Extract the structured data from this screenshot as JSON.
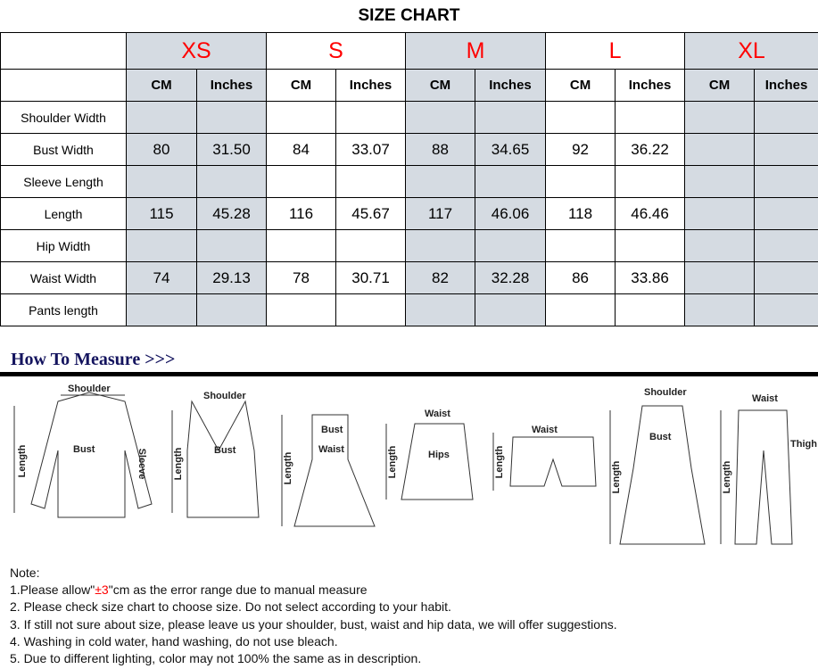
{
  "title": "SIZE CHART",
  "sizes": [
    "XS",
    "S",
    "M",
    "L",
    "XL"
  ],
  "units": [
    "CM",
    "Inches"
  ],
  "rows": [
    {
      "label": "Shoulder Width",
      "values": [
        "",
        "",
        "",
        "",
        "",
        "",
        "",
        "",
        "",
        ""
      ]
    },
    {
      "label": "Bust Width",
      "values": [
        "80",
        "31.50",
        "84",
        "33.07",
        "88",
        "34.65",
        "92",
        "36.22",
        "",
        ""
      ]
    },
    {
      "label": "Sleeve Length",
      "values": [
        "",
        "",
        "",
        "",
        "",
        "",
        "",
        "",
        "",
        ""
      ]
    },
    {
      "label": "Length",
      "values": [
        "115",
        "45.28",
        "116",
        "45.67",
        "117",
        "46.06",
        "118",
        "46.46",
        "",
        ""
      ]
    },
    {
      "label": "Hip Width",
      "values": [
        "",
        "",
        "",
        "",
        "",
        "",
        "",
        "",
        "",
        ""
      ]
    },
    {
      "label": "Waist Width",
      "values": [
        "74",
        "29.13",
        "78",
        "30.71",
        "82",
        "32.28",
        "86",
        "33.86",
        "",
        ""
      ]
    },
    {
      "label": "Pants length",
      "values": [
        "",
        "",
        "",
        "",
        "",
        "",
        "",
        "",
        "",
        ""
      ]
    }
  ],
  "how_to_measure": "How To Measure >>>",
  "diagram_labels": {
    "shoulder": "Shoulder",
    "bust": "Bust",
    "sleeve": "Sleeve",
    "length": "Length",
    "waist": "Waist",
    "hips": "Hips",
    "thigh": "Thigh"
  },
  "notes": {
    "heading": "Note:",
    "line1_pre": "1.Please allow\"",
    "line1_red": "±3",
    "line1_post": "\"cm as the error range due to manual measure",
    "line2": "2. Please check size chart to choose size. Do not select according to your habit.",
    "line3": "3. If still not sure about size, please leave us your shoulder, bust, waist and hip data, we will offer suggestions.",
    "line4": "4. Washing in cold water, hand washing, do not use bleach.",
    "line5": "5. Due to different lighting, color may not 100% the same as in description."
  },
  "colors": {
    "shaded": "#d5dbe2",
    "size_label": "#ff0000",
    "heading": "#14145e"
  }
}
